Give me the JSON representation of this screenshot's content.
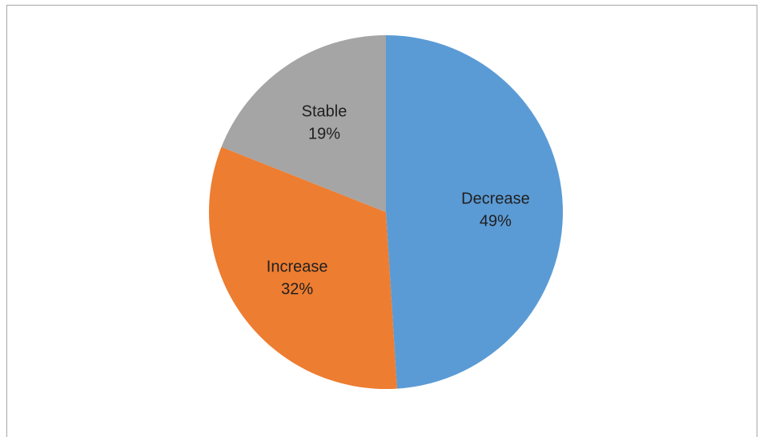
{
  "chart_data": {
    "type": "pie",
    "title": "",
    "slices": [
      {
        "label": "Decrease",
        "value": 49,
        "display": "49%",
        "color": "#5b9bd5"
      },
      {
        "label": "Increase",
        "value": 32,
        "display": "32%",
        "color": "#ed7d31"
      },
      {
        "label": "Stable",
        "value": 19,
        "display": "19%",
        "color": "#a5a5a5"
      }
    ],
    "start_angle_deg": 0,
    "direction": "clockwise",
    "legend": "none",
    "data_labels": "inside"
  }
}
